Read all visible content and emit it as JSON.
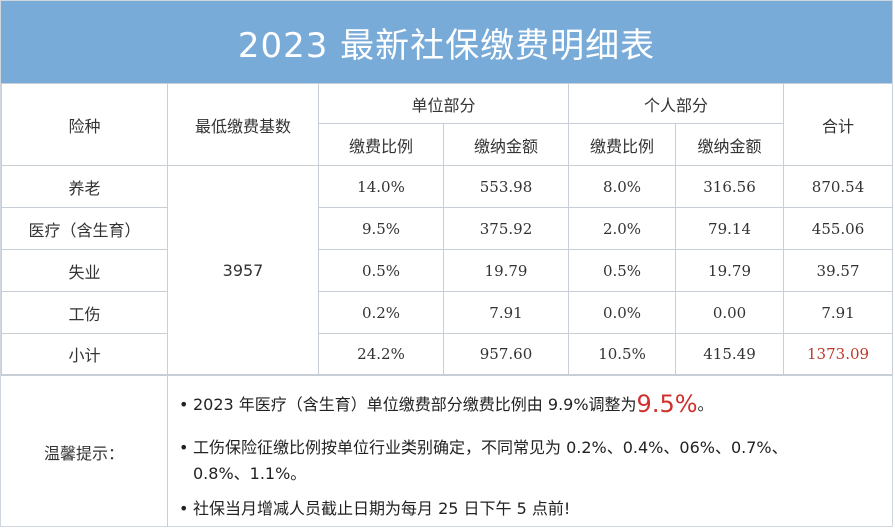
{
  "title": "2023 最新社保缴费明细表",
  "header": {
    "insurance_type": "险种",
    "min_base": "最低缴费基数",
    "employer_part": "单位部分",
    "employee_part": "个人部分",
    "total": "合计",
    "rate": "缴费比例",
    "amount": "缴纳金额"
  },
  "base_value": "3957",
  "rows": [
    {
      "name": "养老",
      "employer_rate": "14.0%",
      "employer_amount": "553.98",
      "employee_rate": "8.0%",
      "employee_amount": "316.56",
      "total": "870.54"
    },
    {
      "name": "医疗（含生育）",
      "employer_rate": "9.5%",
      "employer_amount": "375.92",
      "employee_rate": "2.0%",
      "employee_amount": "79.14",
      "total": "455.06"
    },
    {
      "name": "失业",
      "employer_rate": "0.5%",
      "employer_amount": "19.79",
      "employee_rate": "0.5%",
      "employee_amount": "19.79",
      "total": "39.57"
    },
    {
      "name": "工伤",
      "employer_rate": "0.2%",
      "employer_amount": "7.91",
      "employee_rate": "0.0%",
      "employee_amount": "0.00",
      "total": "7.91"
    },
    {
      "name": "小计",
      "employer_rate": "24.2%",
      "employer_amount": "957.60",
      "employee_rate": "10.5%",
      "employee_amount": "415.49",
      "total": "1373.09"
    }
  ],
  "tips": {
    "label": "温馨提示：",
    "bullet": "•",
    "tip1_text": "2023 年医疗（含生育）单位缴费部分缴费比例由 9.9%调整为",
    "tip1_highlight": "9.5%",
    "tip1_end": "。",
    "tip2_line1": "工伤保险征缴比例按单位行业类别确定，不同常见为 0.2%、0.4%、06%、0.7%、",
    "tip2_line2": "0.8%、1.1%。",
    "tip3_text": "社保当月增减人员截止日期为每月 25 日下午 5 点前!"
  },
  "colors": {
    "title_bg": "#79abd9",
    "highlight_red": "#d0312d",
    "total_red": "#c0392b"
  }
}
